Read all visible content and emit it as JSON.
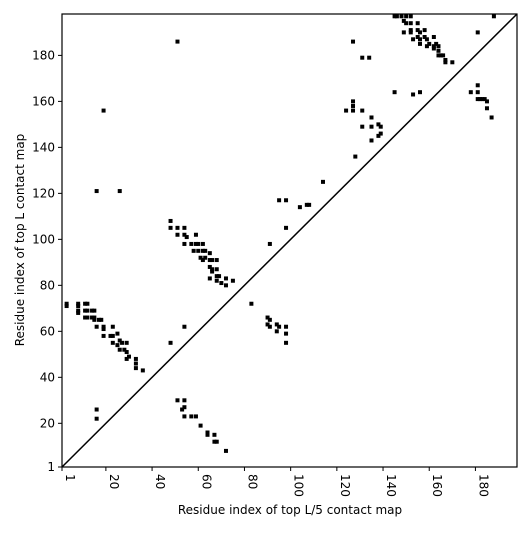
{
  "chart_data": {
    "type": "scatter",
    "xlabel": "Residue index of top L/5 contact map",
    "ylabel": "Residue index of top L contact map",
    "xlim": [
      1,
      198
    ],
    "ylim": [
      1,
      198
    ],
    "xticks": [
      1,
      20,
      40,
      60,
      80,
      100,
      120,
      140,
      160,
      180
    ],
    "yticks": [
      1,
      20,
      40,
      60,
      80,
      100,
      120,
      140,
      160,
      180
    ],
    "series": [
      {
        "color": "#000000",
        "x": [
          3,
          3,
          8,
          8,
          8,
          8,
          11,
          12,
          11,
          12,
          11,
          12,
          14,
          15,
          14,
          15,
          15,
          17,
          18,
          16,
          19,
          19,
          19,
          22,
          23,
          23,
          23,
          25,
          26,
          25,
          26,
          27,
          28,
          29,
          29,
          30,
          29,
          33,
          33,
          33,
          36,
          16,
          16,
          48,
          54,
          48,
          48,
          51,
          51,
          54,
          54,
          55,
          54,
          57,
          58,
          59,
          59,
          60,
          60,
          61,
          62,
          62,
          62,
          63,
          63,
          65,
          65,
          66,
          65,
          66,
          66,
          65,
          68,
          68,
          68,
          69,
          68,
          70,
          72,
          72,
          75,
          51,
          54,
          54,
          53,
          54,
          57,
          59,
          61,
          64,
          64,
          67,
          67,
          68,
          72,
          83,
          90,
          91,
          90,
          91,
          94,
          95,
          94,
          98,
          98,
          98,
          16,
          26,
          19,
          51,
          91,
          95,
          98,
          98,
          104,
          107,
          108,
          114,
          124,
          127,
          127,
          127,
          127,
          128,
          131,
          131,
          131,
          134,
          135,
          135,
          135,
          138,
          139,
          139,
          138,
          145,
          145,
          146,
          148,
          149,
          149,
          150,
          150,
          152,
          152,
          152,
          152,
          153,
          153,
          155,
          155,
          156,
          155,
          156,
          156,
          156,
          158,
          158,
          159,
          160,
          159,
          162,
          162,
          162,
          163,
          164,
          164,
          164,
          165,
          166,
          167,
          167,
          170,
          178,
          181,
          181,
          181,
          181,
          182,
          183,
          184,
          185,
          185,
          187,
          188
        ],
        "values": [
          72,
          71,
          72,
          71,
          69,
          68,
          72,
          72,
          69,
          69,
          66,
          66,
          69,
          69,
          66,
          66,
          65,
          65,
          65,
          62,
          62,
          61,
          58,
          58,
          62,
          58,
          55,
          59,
          56,
          54,
          52,
          55,
          52,
          55,
          51,
          49,
          48,
          48,
          46,
          44,
          43,
          26,
          22,
          55,
          62,
          108,
          105,
          105,
          102,
          105,
          102,
          101,
          98,
          98,
          95,
          102,
          98,
          98,
          95,
          92,
          95,
          91,
          98,
          95,
          92,
          94,
          91,
          91,
          88,
          87,
          86,
          83,
          91,
          87,
          84,
          84,
          82,
          81,
          83,
          80,
          82,
          30,
          30,
          27,
          26,
          23,
          23,
          23,
          19,
          16,
          15,
          15,
          12,
          12,
          8,
          72,
          66,
          65,
          63,
          62,
          63,
          62,
          60,
          62,
          59,
          55,
          121,
          121,
          156,
          186,
          98,
          117,
          117,
          105,
          114,
          115,
          115,
          125,
          156,
          186,
          160,
          158,
          156,
          136,
          156,
          149,
          179,
          179,
          153,
          149,
          143,
          150,
          149,
          146,
          145,
          164,
          197,
          197,
          197,
          195,
          190,
          197,
          194,
          197,
          194,
          191,
          190,
          187,
          163,
          194,
          191,
          190,
          188,
          187,
          185,
          164,
          191,
          188,
          187,
          185,
          184,
          188,
          184,
          183,
          185,
          184,
          182,
          180,
          180,
          180,
          178,
          177,
          177,
          164,
          190,
          167,
          164,
          161,
          161,
          161,
          161,
          160,
          157,
          153,
          197
        ]
      }
    ]
  }
}
